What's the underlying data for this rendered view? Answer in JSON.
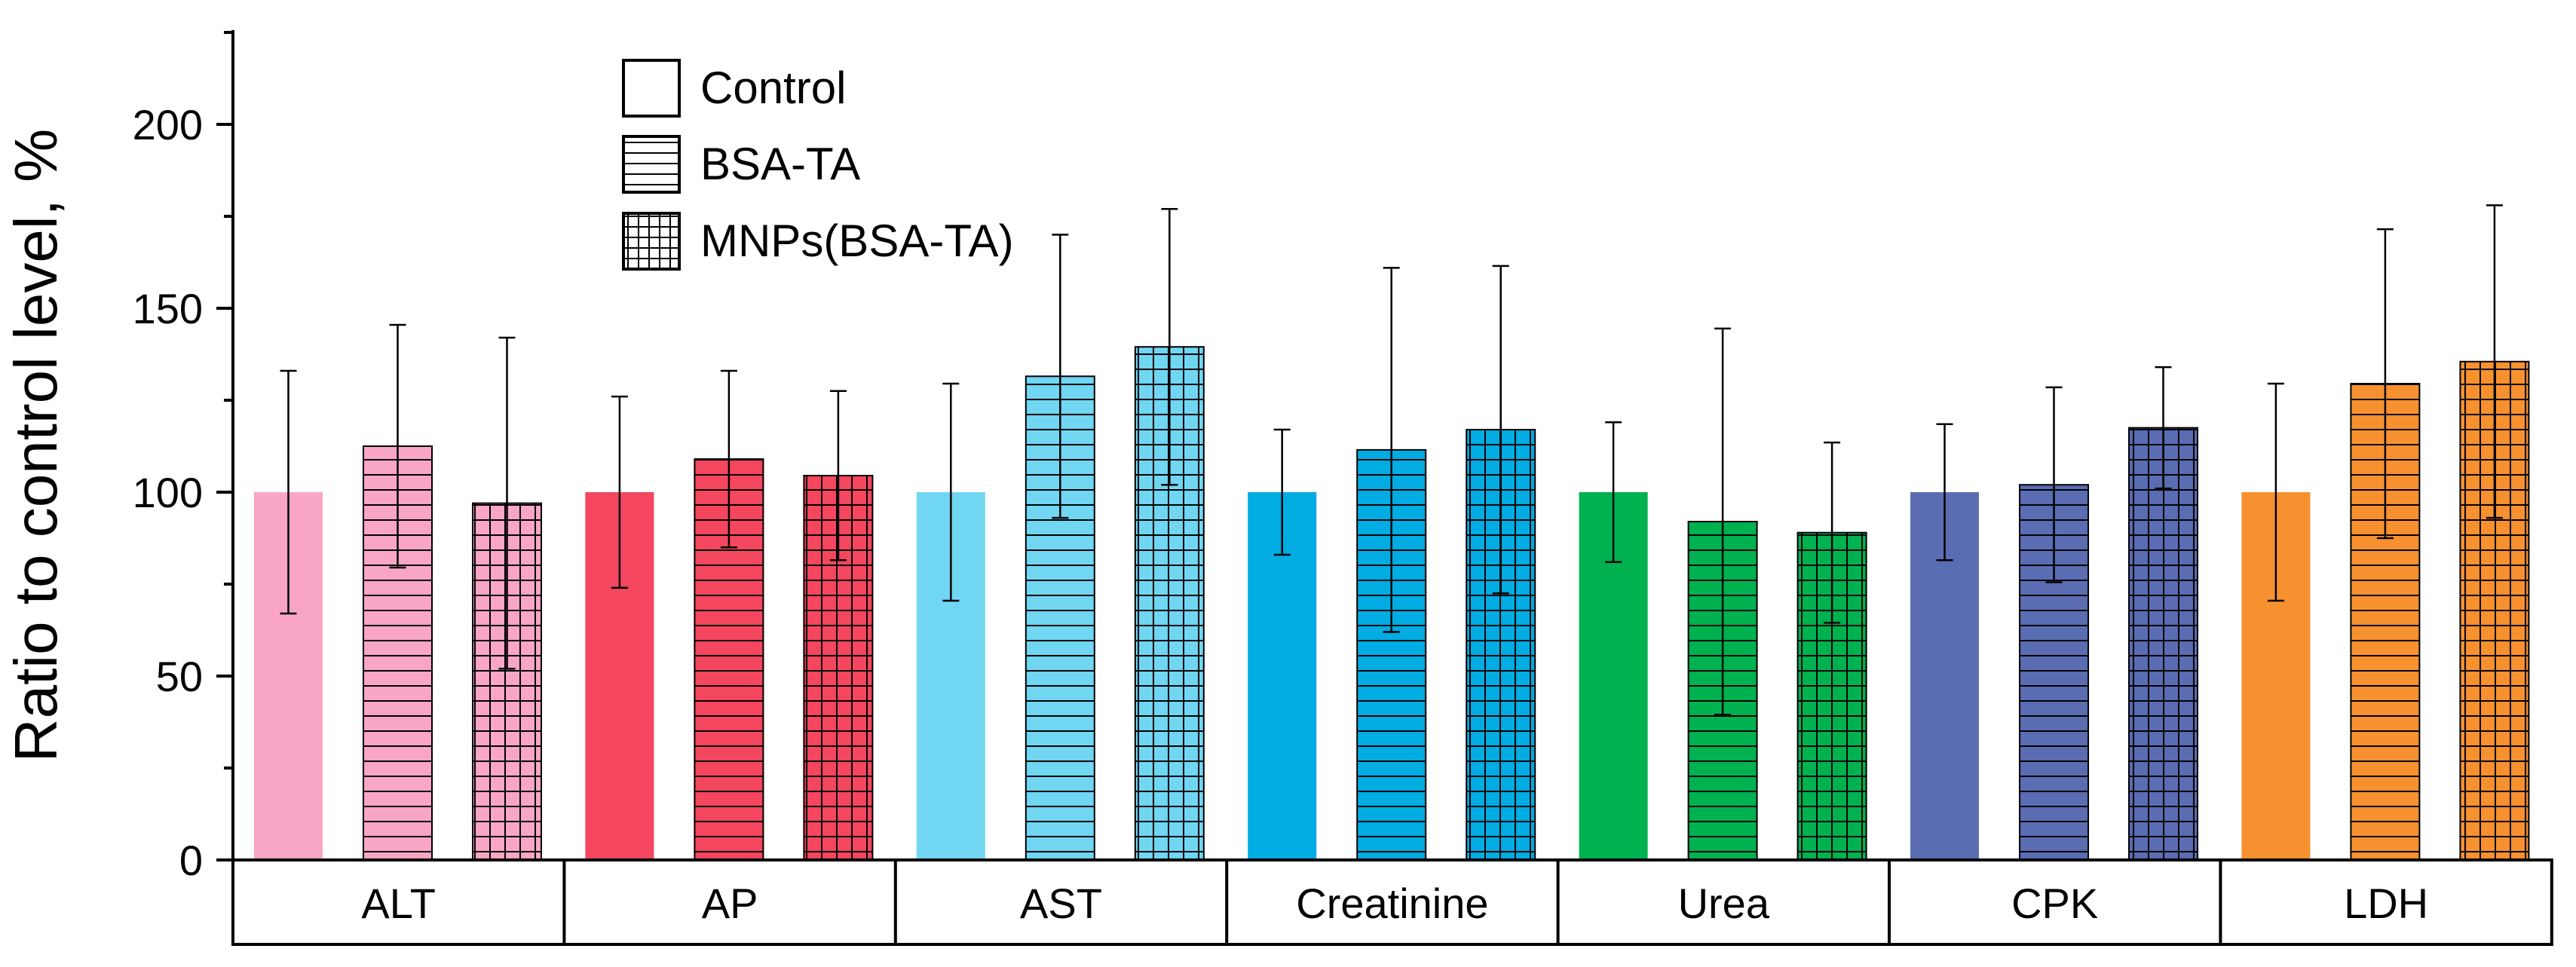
{
  "chart_data": {
    "type": "bar",
    "title": "",
    "xlabel": "",
    "ylabel": "Ratio to control level, %",
    "ylim": [
      0,
      225
    ],
    "yticks": [
      0,
      50,
      100,
      150,
      200
    ],
    "grid": false,
    "legend_position": "top-left",
    "categories": [
      "ALT",
      "AP",
      "AST",
      "Creatinine",
      "Urea",
      "CPK",
      "LDH"
    ],
    "category_colors": [
      "#F9A6C6",
      "#F4465E",
      "#70D6F2",
      "#00ACE2",
      "#00B14F",
      "#5A6DB2",
      "#F7912F"
    ],
    "series": [
      {
        "name": "Control",
        "pattern": "solid",
        "values": [
          100,
          100,
          100,
          100,
          100,
          100,
          100
        ],
        "errors": [
          33,
          26,
          29.5,
          17,
          19,
          18.5,
          29.5
        ]
      },
      {
        "name": "BSA-TA",
        "pattern": "horizontal-lines",
        "values": [
          112.5,
          109,
          131.5,
          111.5,
          92,
          102,
          129.5
        ],
        "errors": [
          33,
          24,
          38.5,
          49.5,
          52.5,
          26.5,
          42
        ]
      },
      {
        "name": "MNPs(BSA-TA)",
        "pattern": "grid",
        "values": [
          97,
          104.5,
          139.5,
          117,
          89,
          117.5,
          135.5
        ],
        "errors": [
          45,
          23,
          37.5,
          44.5,
          24.5,
          16.5,
          42.5
        ]
      }
    ]
  }
}
